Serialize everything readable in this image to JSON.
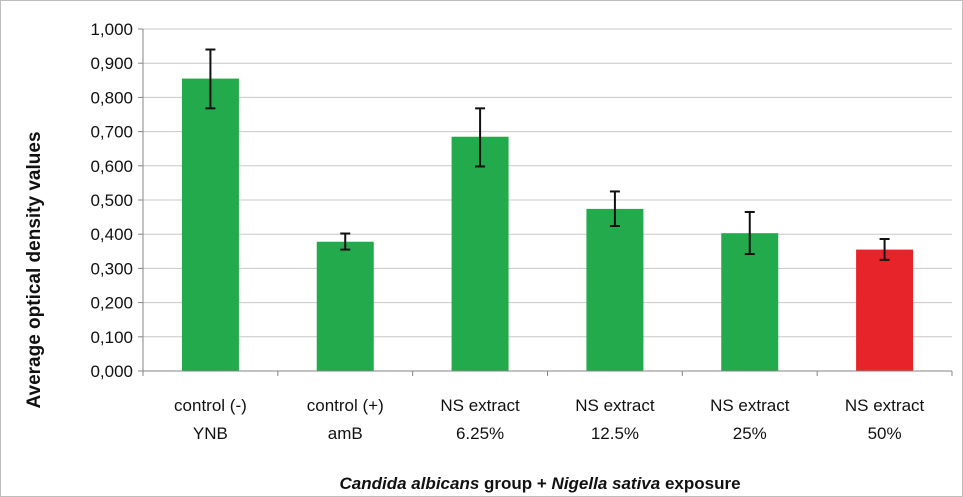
{
  "chart_data": {
    "type": "bar",
    "categories": [
      [
        "control (-)",
        "YNB"
      ],
      [
        "control (+)",
        "amB"
      ],
      [
        "NS extract",
        "6.25%"
      ],
      [
        "NS extract",
        "12.5%"
      ],
      [
        "NS extract",
        "25%"
      ],
      [
        "NS extract",
        "50%"
      ]
    ],
    "values": [
      0.855,
      0.378,
      0.685,
      0.474,
      0.403,
      0.355
    ],
    "error_low": [
      0.768,
      0.355,
      0.598,
      0.424,
      0.342,
      0.325
    ],
    "error_high": [
      0.94,
      0.402,
      0.768,
      0.525,
      0.465,
      0.386
    ],
    "bar_colors": [
      "#22aa4c",
      "#22aa4c",
      "#22aa4c",
      "#22aa4c",
      "#22aa4c",
      "#e8242b"
    ],
    "ylim": [
      0,
      1.0
    ],
    "yticks": [
      "0,000",
      "0,100",
      "0,200",
      "0,300",
      "0,400",
      "0,500",
      "0,600",
      "0,700",
      "0,800",
      "0,900",
      "1,000"
    ],
    "ylabel": "Average optical density  values",
    "xlabel": [
      {
        "text": "Candida albicans",
        "style": "bold-italic"
      },
      {
        "text": " group + ",
        "style": "bold"
      },
      {
        "text": "Nigella sativa",
        "style": "bold-italic"
      },
      {
        "text": " exposure",
        "style": "bold"
      }
    ],
    "grid": true,
    "gridline_color": "#c8c8c8",
    "axis_color": "#868686"
  }
}
